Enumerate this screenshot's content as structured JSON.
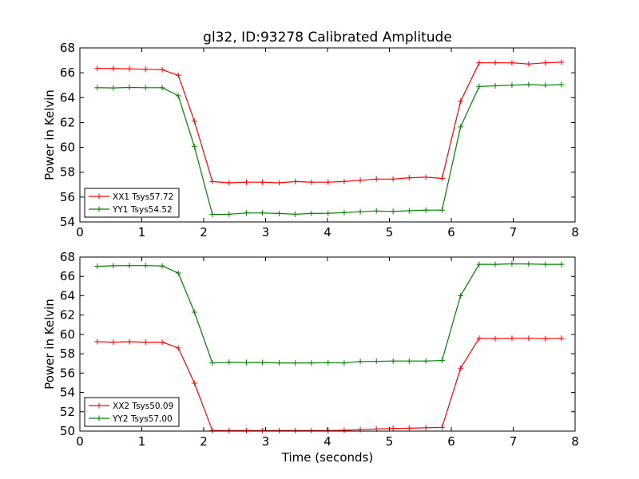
{
  "figure": {
    "title": "gl32, ID:93278 Calibrated Amplitude"
  },
  "chart_data": [
    {
      "type": "line",
      "title": "gl32, ID:93278 Calibrated Amplitude",
      "xlabel": "",
      "ylabel": "Power in Kelvin",
      "xlim": [
        0,
        8
      ],
      "ylim": [
        54,
        68
      ],
      "xticks": [
        0,
        1,
        2,
        3,
        4,
        5,
        6,
        7,
        8
      ],
      "yticks": [
        54,
        56,
        58,
        60,
        62,
        64,
        66,
        68
      ],
      "grid": false,
      "legend_position": "bottom-left",
      "x": [
        0.28,
        0.54,
        0.8,
        1.06,
        1.33,
        1.59,
        1.85,
        2.14,
        2.41,
        2.69,
        2.95,
        3.22,
        3.48,
        3.74,
        4.01,
        4.27,
        4.53,
        4.79,
        5.06,
        5.32,
        5.59,
        5.85,
        6.15,
        6.45,
        6.71,
        6.98,
        7.25,
        7.52,
        7.78
      ],
      "series": [
        {
          "name": "XX1 Tsys57.72",
          "color": "#ff0000",
          "values": [
            66.35,
            66.35,
            66.32,
            66.28,
            66.25,
            65.8,
            62.1,
            57.25,
            57.15,
            57.2,
            57.2,
            57.15,
            57.25,
            57.2,
            57.2,
            57.25,
            57.35,
            57.45,
            57.45,
            57.55,
            57.6,
            57.5,
            63.7,
            66.8,
            66.8,
            66.8,
            66.7,
            66.8,
            66.85
          ]
        },
        {
          "name": "YY1 Tsys54.52",
          "color": "#008000",
          "values": [
            64.8,
            64.78,
            64.82,
            64.8,
            64.8,
            64.15,
            60.05,
            54.6,
            54.62,
            54.72,
            54.72,
            54.68,
            54.62,
            54.68,
            54.7,
            54.75,
            54.82,
            54.88,
            54.85,
            54.9,
            54.95,
            54.95,
            61.65,
            64.9,
            64.95,
            65.0,
            65.05,
            65.0,
            65.05
          ]
        }
      ]
    },
    {
      "type": "line",
      "title": "",
      "xlabel": "Time (seconds)",
      "ylabel": "Power in Kelvin",
      "xlim": [
        0,
        8
      ],
      "ylim": [
        50,
        68
      ],
      "xticks": [
        0,
        1,
        2,
        3,
        4,
        5,
        6,
        7,
        8
      ],
      "yticks": [
        50,
        52,
        54,
        56,
        58,
        60,
        62,
        64,
        66,
        68
      ],
      "grid": false,
      "legend_position": "bottom-left",
      "x": [
        0.28,
        0.54,
        0.8,
        1.06,
        1.33,
        1.59,
        1.85,
        2.14,
        2.41,
        2.69,
        2.95,
        3.22,
        3.48,
        3.74,
        4.01,
        4.27,
        4.53,
        4.79,
        5.06,
        5.32,
        5.59,
        5.85,
        6.15,
        6.45,
        6.71,
        6.98,
        7.25,
        7.52,
        7.78
      ],
      "series": [
        {
          "name": "XX2 Tsys50.09",
          "color": "#ff0000",
          "values": [
            59.25,
            59.2,
            59.25,
            59.2,
            59.2,
            58.6,
            54.95,
            50.05,
            50.05,
            50.05,
            50.05,
            50.05,
            50.05,
            50.05,
            50.05,
            50.08,
            50.15,
            50.22,
            50.28,
            50.3,
            50.35,
            50.38,
            56.5,
            59.6,
            59.55,
            59.6,
            59.6,
            59.55,
            59.6
          ]
        },
        {
          "name": "YY2 Tsys57.00",
          "color": "#008000",
          "values": [
            67.05,
            67.1,
            67.12,
            67.12,
            67.08,
            66.35,
            62.3,
            57.05,
            57.12,
            57.1,
            57.1,
            57.05,
            57.05,
            57.05,
            57.08,
            57.05,
            57.2,
            57.22,
            57.25,
            57.25,
            57.25,
            57.3,
            64.0,
            67.25,
            67.25,
            67.3,
            67.28,
            67.25,
            67.25
          ]
        }
      ]
    }
  ]
}
